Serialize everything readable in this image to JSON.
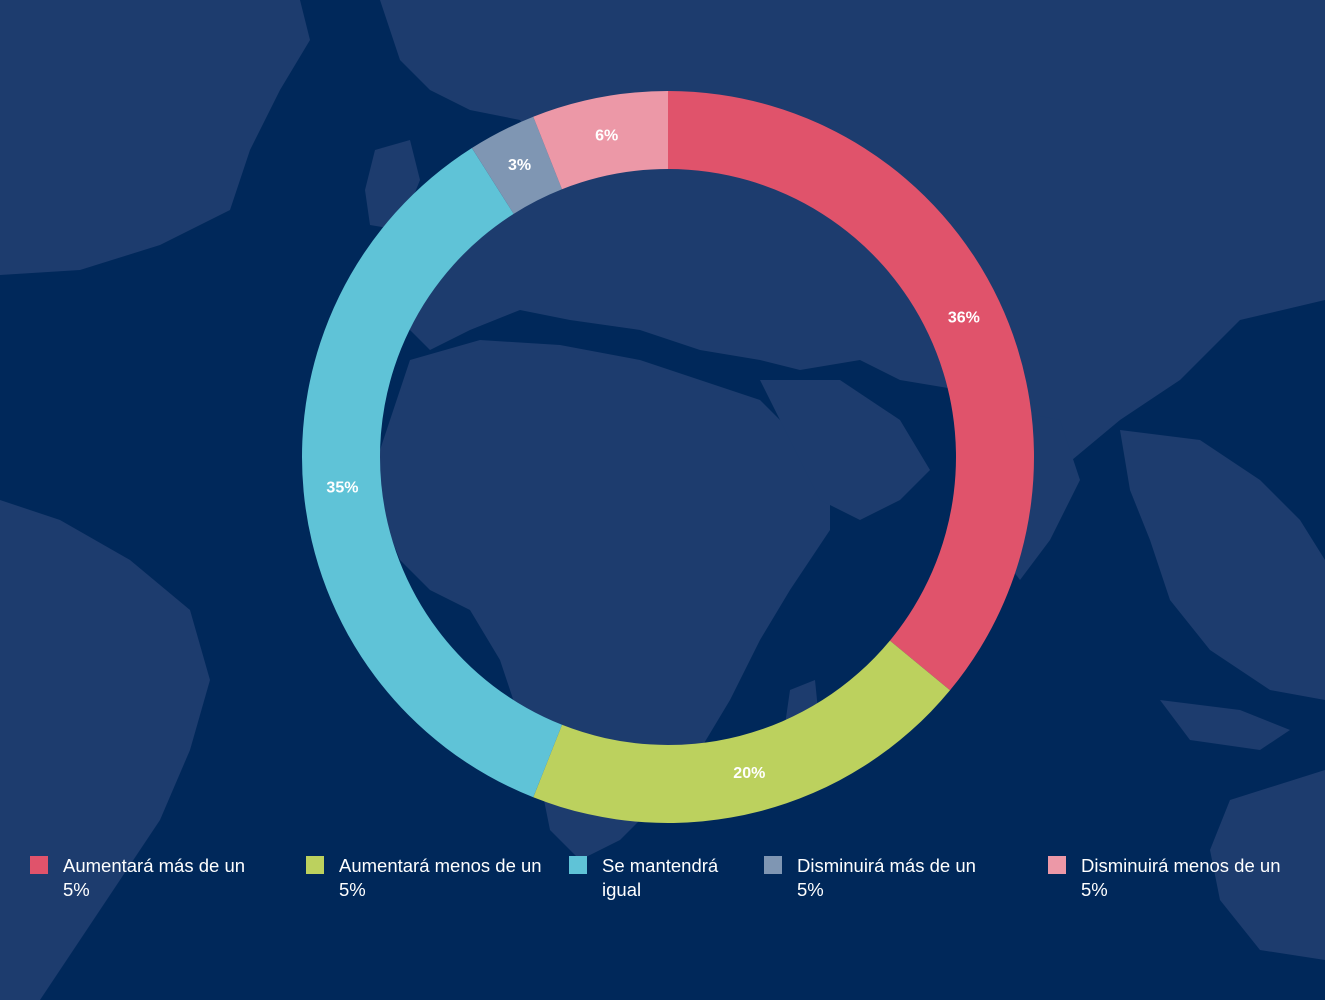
{
  "chart_data": {
    "type": "pie",
    "categories": [
      "Aumentará más de un 5%",
      "Aumentará menos de un 5%",
      "Se mantendrá igual",
      "Disminuirá más de un 5%",
      "Disminuirá menos de un 5%"
    ],
    "values": [
      36,
      20,
      35,
      3,
      6
    ],
    "value_labels": [
      "36%",
      "20%",
      "35%",
      "3%",
      "6%"
    ],
    "colors": [
      "#e0536b",
      "#bcd15e",
      "#5fc3d7",
      "#7f96b3",
      "#ec98a7"
    ],
    "legend_position": "bottom",
    "title": "",
    "xlabel": "",
    "ylabel": ""
  },
  "legend": [
    {
      "line1": "Aumentará más de un",
      "line2": "5%",
      "color": "#e0536b"
    },
    {
      "line1": "Aumentará menos de un",
      "line2": "5%",
      "color": "#bcd15e"
    },
    {
      "line1": "Se mantendrá",
      "line2": "igual",
      "color": "#5fc3d7"
    },
    {
      "line1": "Disminuirá más de un",
      "line2": "5%",
      "color": "#7f96b3"
    },
    {
      "line1": "Disminuirá menos de un",
      "line2": "5%",
      "color": "#ec98a7"
    }
  ],
  "background": {
    "ocean_color": "#00285a",
    "land_color": "#1d3c6e"
  }
}
